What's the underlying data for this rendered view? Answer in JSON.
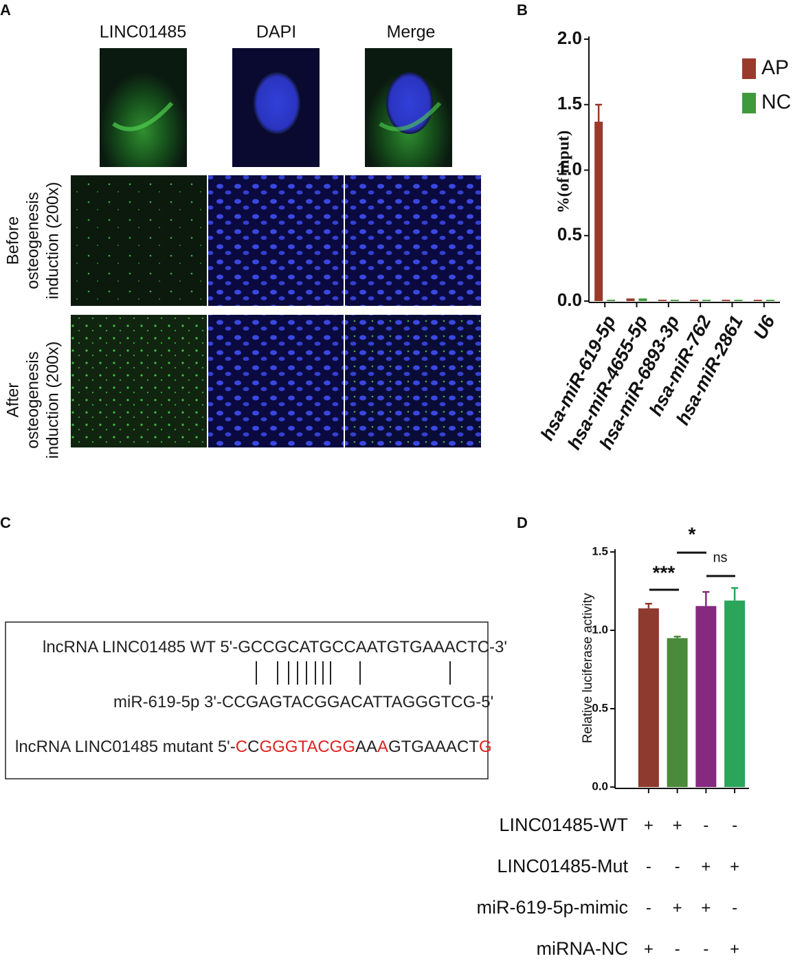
{
  "panel_labels": [
    "A",
    "B",
    "C",
    "D"
  ],
  "panel_a": {
    "column_titles": [
      "LINC01485",
      "DAPI",
      "Merge"
    ],
    "row_labels": [
      [
        "Before",
        "osteogenesis",
        "induction (200x)"
      ],
      [
        "After",
        "osteogenesis",
        "induction (200x)"
      ]
    ]
  },
  "chart_data": [
    {
      "type": "bar",
      "y_label": "%(of input)",
      "categories": [
        "hsa-miR-619-5p",
        "hsa-miR-4655-5p",
        "hsa-miR-6893-3p",
        "hsa-miR-762",
        "hsa-miR-2861",
        "U6"
      ],
      "series": [
        {
          "name": "AP",
          "color": "#9a3a2c",
          "values": [
            1.37,
            0.02,
            0.01,
            0.01,
            0.01,
            0.01
          ],
          "errors": [
            0.13,
            null,
            null,
            null,
            null,
            null
          ]
        },
        {
          "name": "NC",
          "color": "#3f9a3c",
          "values": [
            0.01,
            0.02,
            0.01,
            0.01,
            0.01,
            0.01
          ]
        }
      ],
      "ylim": [
        0,
        2.0
      ],
      "yticks": [
        {
          "value": 0,
          "label": "0.0"
        },
        0.5,
        {
          "value": 1,
          "label": "1.0"
        },
        1.5,
        {
          "value": 2,
          "label": "2.0"
        }
      ],
      "legend": "top-right"
    },
    {
      "type": "bar",
      "y_label": "Relative luciferase activity",
      "categories": [
        null,
        null,
        null,
        null
      ],
      "values": [
        1.14,
        0.95,
        1.155,
        1.19
      ],
      "errors": [
        0.03,
        0.01,
        0.09,
        0.08
      ],
      "colors": [
        "#8e3a2e",
        "#4a8a3a",
        "#862a80",
        "#2aa55a"
      ],
      "ylim": [
        0,
        1.5
      ],
      "yticks": [
        {
          "value": 0,
          "label": "0.0"
        },
        0.5,
        {
          "value": 1,
          "label": "1.0"
        },
        1.5
      ],
      "annotations": [
        "***",
        "*",
        "ns"
      ],
      "conditions": [
        {
          "label": "LINC01485-WT",
          "cells": [
            "+",
            "+",
            "-",
            "-"
          ]
        },
        {
          "label": "LINC01485-Mut",
          "cells": [
            "-",
            "-",
            "+",
            "+"
          ]
        },
        {
          "label": "miR-619-5p-mimic",
          "cells": [
            "-",
            "+",
            "+",
            "-"
          ]
        },
        {
          "label": "miRNA-NC",
          "cells": [
            "+",
            "-",
            "-",
            "+"
          ]
        }
      ]
    }
  ],
  "panel_c": {
    "lines": [
      {
        "segments": [
          {
            "text": "lncRNA LINC01485 WT 5'-GCCGCATGCCAATGTGAAACTC-3'",
            "color": "#222222"
          }
        ]
      },
      {
        "segments": [
          {
            "text": "miR-619-5p  3'-CCGAGTACGGACATTAGGGTCG-5'",
            "color": "#222222"
          }
        ]
      },
      {
        "segments": [
          {
            "text": "lncRNA LINC01485 mutant 5'-",
            "color": "#222222"
          },
          {
            "text": "C",
            "color": "#e02020"
          },
          {
            "text": "C",
            "color": "#222222"
          },
          {
            "text": "GGGTACGG",
            "color": "#e02020"
          },
          {
            "text": "AA",
            "color": "#222222"
          },
          {
            "text": "A",
            "color": "#e02020"
          },
          {
            "text": "GTGAAACT",
            "color": "#222222"
          },
          {
            "text": "G",
            "color": "#e02020"
          }
        ]
      }
    ]
  }
}
